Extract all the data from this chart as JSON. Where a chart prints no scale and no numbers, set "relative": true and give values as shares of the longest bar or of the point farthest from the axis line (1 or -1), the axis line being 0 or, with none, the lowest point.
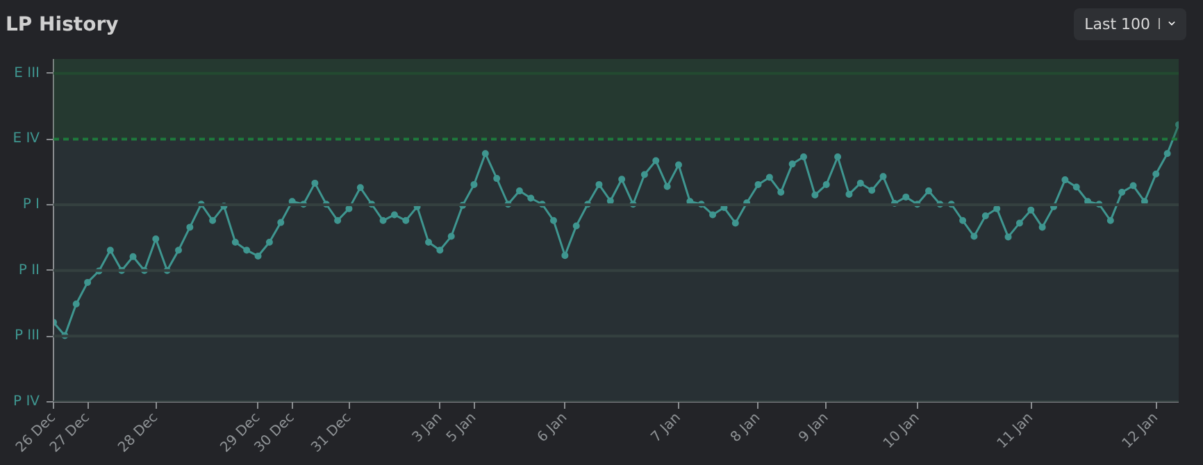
{
  "chart_data": {
    "type": "line",
    "title": "LP History",
    "annotations": [
      "Last 100"
    ],
    "relative": true,
    "categories": [
      "26 Dec",
      null,
      null,
      "27 Dec",
      null,
      null,
      null,
      null,
      null,
      "28 Dec",
      null,
      null,
      null,
      null,
      null,
      null,
      null,
      null,
      "29 Dec",
      null,
      null,
      "30 Dec",
      null,
      null,
      null,
      null,
      "31 Dec",
      null,
      null,
      null,
      null,
      null,
      null,
      null,
      "3 Jan",
      null,
      null,
      "5 Jan",
      null,
      null,
      null,
      null,
      null,
      null,
      null,
      "6 Jan",
      null,
      null,
      null,
      null,
      null,
      null,
      null,
      null,
      null,
      "7 Jan",
      null,
      null,
      null,
      null,
      null,
      null,
      "8 Jan",
      null,
      null,
      null,
      null,
      null,
      "9 Jan",
      null,
      null,
      null,
      null,
      null,
      null,
      null,
      "10 Jan",
      null,
      null,
      null,
      null,
      null,
      null,
      null,
      null,
      null,
      "11 Jan",
      null,
      null,
      null,
      null,
      null,
      null,
      null,
      null,
      null,
      null,
      "12 Jan",
      null,
      null
    ],
    "series": [
      {
        "color": "#3f9690",
        "values": [
          0.287,
          0.239,
          0.353,
          0.431,
          0.472,
          0.547,
          0.474,
          0.524,
          0.474,
          0.588,
          0.474,
          0.547,
          0.63,
          0.713,
          0.654,
          0.706,
          0.576,
          0.547,
          0.526,
          0.576,
          0.647,
          0.723,
          0.713,
          0.789,
          0.713,
          0.654,
          0.697,
          0.773,
          0.713,
          0.654,
          0.675,
          0.654,
          0.704,
          0.576,
          0.547,
          0.597,
          0.709,
          0.784,
          0.896,
          0.806,
          0.713,
          0.761,
          0.735,
          0.713,
          0.654,
          0.528,
          0.635,
          0.713,
          0.784,
          0.725,
          0.803,
          0.713,
          0.82,
          0.87,
          0.777,
          0.855,
          0.723,
          0.713,
          0.675,
          0.701,
          0.645,
          0.718,
          0.784,
          0.81,
          0.756,
          0.858,
          0.884,
          0.746,
          0.784,
          0.884,
          0.749,
          0.789,
          0.763,
          0.813,
          0.716,
          0.739,
          0.713,
          0.761,
          0.713,
          0.713,
          0.654,
          0.597,
          0.671,
          0.697,
          0.595,
          0.645,
          0.692,
          0.63,
          0.704,
          0.801,
          0.775,
          0.723,
          0.713,
          0.654,
          0.756,
          0.78,
          0.723,
          0.822,
          0.896,
          1.0
        ]
      }
    ],
    "marker": "circle",
    "line_style": "solid",
    "ref_lines": [
      {
        "axis": "y",
        "value": 0,
        "label": "P IV",
        "color": "#34403f"
      },
      {
        "axis": "y",
        "value": 0.237,
        "label": "P III",
        "color": "#34403f"
      },
      {
        "axis": "y",
        "value": 0.474,
        "label": "P II",
        "color": "#34403f"
      },
      {
        "axis": "y",
        "value": 0.711,
        "label": "P I",
        "color": "#34403f"
      },
      {
        "axis": "y",
        "value": 0.948,
        "label": "E IV",
        "color": "#1f7a3c",
        "line_style": "dashed"
      },
      {
        "axis": "y",
        "value": 1.185,
        "label": "E III",
        "color": "#234a30"
      }
    ],
    "bands": [
      {
        "axis": "y",
        "from": 0.948,
        "to": 1.237,
        "color": "#1f4a2c"
      }
    ]
  }
}
